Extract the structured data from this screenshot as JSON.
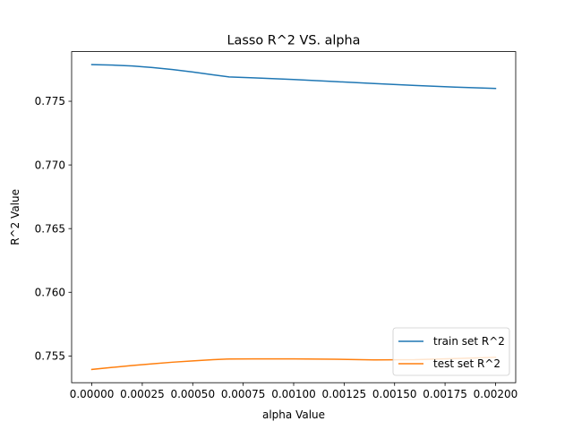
{
  "chart_data": {
    "type": "line",
    "title": "Lasso R^2 VS. alpha",
    "xlabel": "alpha Value",
    "ylabel": "R^2 Value",
    "xlim": [
      -0.0001,
      0.0021
    ],
    "ylim": [
      0.7529,
      0.7789
    ],
    "xticks": [
      0.0,
      0.00025,
      0.0005,
      0.00075,
      0.001,
      0.00125,
      0.0015,
      0.00175,
      0.002
    ],
    "xtick_labels": [
      "0.00000",
      "0.00025",
      "0.00050",
      "0.00075",
      "0.00100",
      "0.00125",
      "0.00150",
      "0.00175",
      "0.00200"
    ],
    "yticks": [
      0.755,
      0.76,
      0.765,
      0.77,
      0.775
    ],
    "ytick_labels": [
      "0.755",
      "0.760",
      "0.765",
      "0.770",
      "0.775"
    ],
    "grid": false,
    "legend_position": "lower-right",
    "series": [
      {
        "name": "train set R^2",
        "color": "#1f77b4",
        "x": [
          0.0,
          0.0001,
          0.0002,
          0.0003,
          0.0004,
          0.0005,
          0.0006,
          0.00068,
          0.0008,
          0.001,
          0.0012,
          0.0014,
          0.0016,
          0.0018,
          0.002
        ],
        "y": [
          0.77788,
          0.77784,
          0.77777,
          0.77765,
          0.77749,
          0.7773,
          0.77708,
          0.77691,
          0.77684,
          0.77671,
          0.77655,
          0.77639,
          0.77624,
          0.77611,
          0.77601
        ]
      },
      {
        "name": "test set R^2",
        "color": "#ff7f0e",
        "x": [
          0.0,
          0.0001,
          0.0002,
          0.0003,
          0.0004,
          0.0005,
          0.0006,
          0.00068,
          0.0008,
          0.001,
          0.0012,
          0.0014,
          0.0016,
          0.0018,
          0.002
        ],
        "y": [
          0.75394,
          0.7541,
          0.75425,
          0.75438,
          0.75451,
          0.75461,
          0.75471,
          0.75476,
          0.75477,
          0.75477,
          0.75474,
          0.75469,
          0.75471,
          0.7548,
          0.75489
        ]
      }
    ]
  }
}
